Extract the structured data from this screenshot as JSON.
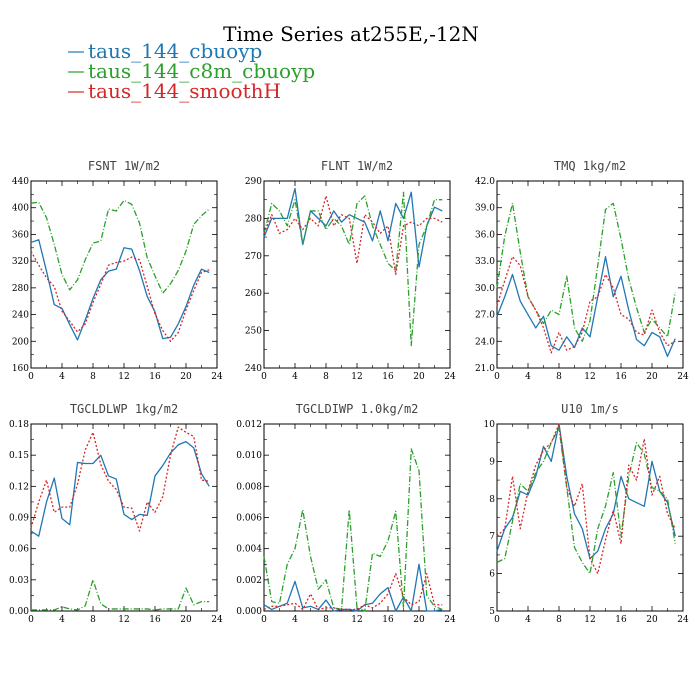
{
  "figure": {
    "title": "Time Series at255E,-12N",
    "legend": [
      {
        "label": "taus_144_cbuoyp",
        "color": "#1f77b4",
        "dash": "solid"
      },
      {
        "label": "taus_144_c8m_cbuoyp",
        "color": "#2ca02c",
        "dash": "dashdot"
      },
      {
        "label": "taus_144_smoothH",
        "color": "#d62728",
        "dash": "dotted"
      }
    ]
  },
  "chart_data": [
    {
      "type": "line",
      "title": "FSNT   1W/m2",
      "x": [
        0,
        1,
        2,
        3,
        4,
        5,
        6,
        7,
        8,
        9,
        10,
        11,
        12,
        13,
        14,
        15,
        16,
        17,
        18,
        19,
        20,
        21,
        22,
        23
      ],
      "xlim": [
        0,
        24
      ],
      "xticks": [
        0,
        4,
        8,
        12,
        16,
        20,
        24
      ],
      "ylim": [
        160,
        440
      ],
      "yticks": [
        160,
        200,
        240,
        280,
        320,
        360,
        400,
        440
      ],
      "ydecimals": 0,
      "series": [
        {
          "name": "taus_144_cbuoyp",
          "values": [
            348,
            352,
            305,
            255,
            249,
            225,
            202,
            232,
            264,
            292,
            305,
            308,
            340,
            338,
            306,
            267,
            244,
            204,
            206,
            226,
            252,
            284,
            308,
            303
          ]
        },
        {
          "name": "taus_144_c8m_cbuoyp",
          "values": [
            407,
            408,
            385,
            345,
            300,
            277,
            292,
            322,
            347,
            350,
            398,
            395,
            411,
            405,
            377,
            325,
            298,
            272,
            286,
            306,
            335,
            375,
            388,
            398
          ]
        },
        {
          "name": "taus_144_smoothH",
          "values": [
            335,
            314,
            295,
            282,
            245,
            230,
            214,
            226,
            258,
            285,
            314,
            318,
            320,
            326,
            322,
            282,
            241,
            216,
            200,
            213,
            247,
            276,
            303,
            307
          ]
        }
      ]
    },
    {
      "type": "line",
      "title": "FLNT   1W/m2",
      "x": [
        0,
        1,
        2,
        3,
        4,
        5,
        6,
        7,
        8,
        9,
        10,
        11,
        12,
        13,
        14,
        15,
        16,
        17,
        18,
        19,
        20,
        21,
        22,
        23
      ],
      "xlim": [
        0,
        24
      ],
      "xticks": [
        0,
        4,
        8,
        12,
        16,
        20,
        24
      ],
      "ylim": [
        240,
        290
      ],
      "yticks": [
        240,
        250,
        260,
        270,
        280,
        290
      ],
      "ydecimals": 0,
      "series": [
        {
          "name": "taus_144_cbuoyp",
          "values": [
            275,
            280,
            280,
            280,
            288,
            273,
            282,
            280,
            278,
            282,
            279,
            281,
            280,
            279,
            274,
            282,
            274,
            284,
            280,
            287,
            267,
            278,
            283,
            282
          ]
        },
        {
          "name": "taus_144_c8m_cbuoyp",
          "values": [
            276,
            284,
            282,
            278,
            285,
            273,
            282,
            282,
            277,
            280,
            278,
            273,
            284,
            286,
            278,
            273,
            268,
            266,
            287,
            246,
            273,
            278,
            285,
            285
          ]
        },
        {
          "name": "taus_144_smoothH",
          "values": [
            276,
            281,
            276,
            277,
            280,
            277,
            280,
            278,
            286,
            278,
            281,
            280,
            268,
            281,
            279,
            276,
            278,
            265,
            278,
            279,
            278,
            280,
            280,
            279
          ]
        }
      ]
    },
    {
      "type": "line",
      "title": "TMQ   1kg/m2",
      "x": [
        0,
        1,
        2,
        3,
        4,
        5,
        6,
        7,
        8,
        9,
        10,
        11,
        12,
        13,
        14,
        15,
        16,
        17,
        18,
        19,
        20,
        21,
        22,
        23
      ],
      "xlim": [
        0,
        24
      ],
      "xticks": [
        0,
        4,
        8,
        12,
        16,
        20,
        24
      ],
      "ylim": [
        21,
        42
      ],
      "yticks": [
        21,
        24,
        27,
        30,
        33,
        36,
        39,
        42
      ],
      "ydecimals": 1,
      "series": [
        {
          "name": "taus_144_cbuoyp",
          "values": [
            26.8,
            29.0,
            31.5,
            28.5,
            27.0,
            25.5,
            26.8,
            23.5,
            23.0,
            24.5,
            23.3,
            25.5,
            24.5,
            29.0,
            33.5,
            29.0,
            31.3,
            27.5,
            24.2,
            23.5,
            25.0,
            24.5,
            22.3,
            24.3
          ]
        },
        {
          "name": "taus_144_c8m_cbuoyp",
          "values": [
            30.0,
            35.8,
            39.5,
            34.0,
            29.0,
            27.5,
            26.0,
            27.5,
            27.0,
            31.3,
            25.5,
            24.0,
            26.3,
            32.5,
            38.8,
            39.5,
            35.5,
            31.0,
            27.8,
            25.0,
            26.5,
            25.5,
            24.5,
            29.5
          ]
        },
        {
          "name": "taus_144_smoothH",
          "values": [
            28.0,
            30.8,
            33.5,
            32.5,
            29.0,
            27.5,
            25.5,
            22.7,
            25.0,
            23.0,
            23.4,
            25.0,
            28.5,
            29.0,
            31.5,
            30.0,
            27.0,
            26.5,
            25.0,
            24.7,
            27.5,
            25.0,
            23.5,
            24.0
          ]
        }
      ]
    },
    {
      "type": "line",
      "title": "TGCLDLWP   1kg/m2",
      "x": [
        0,
        1,
        2,
        3,
        4,
        5,
        6,
        7,
        8,
        9,
        10,
        11,
        12,
        13,
        14,
        15,
        16,
        17,
        18,
        19,
        20,
        21,
        22,
        23
      ],
      "xlim": [
        0,
        24
      ],
      "xticks": [
        0,
        4,
        8,
        12,
        16,
        20,
        24
      ],
      "ylim": [
        0,
        0.18
      ],
      "yticks": [
        0,
        0.03,
        0.06,
        0.09,
        0.12,
        0.15,
        0.18
      ],
      "ydecimals": 2,
      "series": [
        {
          "name": "taus_144_cbuoyp",
          "values": [
            0.077,
            0.072,
            0.105,
            0.128,
            0.089,
            0.083,
            0.143,
            0.142,
            0.142,
            0.15,
            0.13,
            0.127,
            0.093,
            0.088,
            0.093,
            0.092,
            0.13,
            0.14,
            0.152,
            0.16,
            0.163,
            0.157,
            0.132,
            0.12
          ]
        },
        {
          "name": "taus_144_c8m_cbuoyp",
          "values": [
            0.001,
            0.001,
            0.001,
            0.001,
            0.004,
            0.002,
            0.001,
            0.005,
            0.03,
            0.007,
            0.002,
            0.002,
            0.002,
            0.002,
            0.002,
            0.002,
            0.001,
            0.002,
            0.002,
            0.002,
            0.022,
            0.006,
            0.009,
            0.009
          ]
        },
        {
          "name": "taus_144_smoothH",
          "values": [
            0.08,
            0.105,
            0.126,
            0.095,
            0.1,
            0.1,
            0.122,
            0.155,
            0.172,
            0.141,
            0.125,
            0.117,
            0.1,
            0.099,
            0.077,
            0.105,
            0.095,
            0.11,
            0.15,
            0.177,
            0.172,
            0.168,
            0.126,
            0.125
          ]
        }
      ]
    },
    {
      "type": "line",
      "title": "TGCLDIWP   1.0kg/m2",
      "x": [
        0,
        1,
        2,
        3,
        4,
        5,
        6,
        7,
        8,
        9,
        10,
        11,
        12,
        13,
        14,
        15,
        16,
        17,
        18,
        19,
        20,
        21,
        22,
        23
      ],
      "xlim": [
        0,
        24
      ],
      "xticks": [
        0,
        4,
        8,
        12,
        16,
        20,
        24
      ],
      "ylim": [
        0,
        0.012
      ],
      "yticks": [
        0,
        0.002,
        0.004,
        0.006,
        0.008,
        0.01,
        0.012
      ],
      "ydecimals": 3,
      "series": [
        {
          "name": "taus_144_cbuoyp",
          "values": [
            0.0004,
            0.0001,
            0.0003,
            0.0005,
            0.0019,
            0.0002,
            0.0003,
            0.0001,
            0.0007,
            0.0,
            0.0001,
            0.0001,
            0.0,
            0.0004,
            0.0005,
            0.0011,
            0.0015,
            0.0,
            0.0009,
            0.0,
            0.003,
            0.0,
            0.0,
            0.0001
          ]
        },
        {
          "name": "taus_144_c8m_cbuoyp",
          "values": [
            0.0035,
            0.0006,
            0.0005,
            0.003,
            0.004,
            0.0065,
            0.0035,
            0.0014,
            0.002,
            0.0002,
            0.0001,
            0.0065,
            0.0002,
            0.0,
            0.0037,
            0.0035,
            0.0045,
            0.0064,
            0.0002,
            0.0104,
            0.009,
            0.001,
            0.0003,
            0.0001
          ]
        },
        {
          "name": "taus_144_smoothH",
          "values": [
            0.0001,
            0.0003,
            0.0003,
            0.0004,
            0.0005,
            0.0001,
            0.0011,
            0.0001,
            0.0002,
            0.0002,
            0.0001,
            0.0001,
            0.0001,
            0.0004,
            0.0002,
            0.0005,
            0.0011,
            0.0024,
            0.0009,
            0.0004,
            0.0006,
            0.0024,
            0.0004,
            0.0004
          ]
        }
      ]
    },
    {
      "type": "line",
      "title": "U10   1m/s",
      "x": [
        0,
        1,
        2,
        3,
        4,
        5,
        6,
        7,
        8,
        9,
        10,
        11,
        12,
        13,
        14,
        15,
        16,
        17,
        18,
        19,
        20,
        21,
        22,
        23
      ],
      "xlim": [
        0,
        24
      ],
      "xticks": [
        0,
        4,
        8,
        12,
        16,
        20,
        24
      ],
      "ylim": [
        5,
        10
      ],
      "yticks": [
        5,
        6,
        7,
        8,
        9,
        10
      ],
      "ydecimals": 0,
      "series": [
        {
          "name": "taus_144_cbuoyp",
          "values": [
            6.6,
            7.2,
            7.5,
            8.2,
            8.1,
            8.6,
            9.4,
            9.0,
            10.0,
            8.6,
            7.6,
            7.2,
            6.4,
            6.6,
            7.2,
            7.6,
            8.6,
            8.0,
            7.9,
            7.8,
            9.0,
            8.2,
            7.9,
            7.0
          ]
        },
        {
          "name": "taus_144_c8m_cbuoyp",
          "values": [
            6.3,
            6.4,
            7.4,
            8.4,
            8.2,
            8.7,
            9.0,
            9.5,
            9.9,
            8.3,
            6.7,
            6.3,
            6.0,
            7.2,
            7.8,
            8.7,
            7.0,
            8.6,
            9.5,
            9.2,
            8.3,
            8.2,
            8.0,
            6.8
          ]
        },
        {
          "name": "taus_144_smoothH",
          "values": [
            7.0,
            7.2,
            8.6,
            7.2,
            8.2,
            8.9,
            9.3,
            9.5,
            10.0,
            8.3,
            7.8,
            8.4,
            6.4,
            6.0,
            6.9,
            7.7,
            6.8,
            8.9,
            8.5,
            9.6,
            8.1,
            8.6,
            7.6,
            7.2
          ]
        }
      ]
    }
  ]
}
